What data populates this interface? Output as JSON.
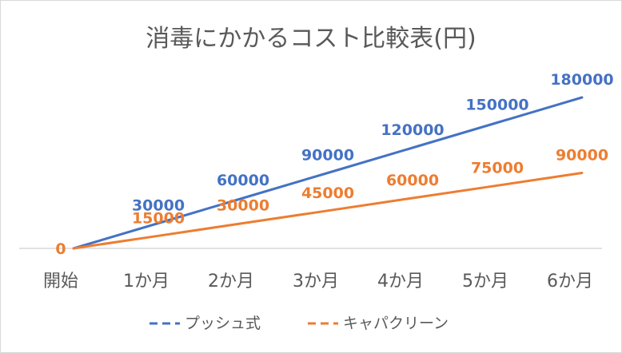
{
  "chart_data": {
    "type": "line",
    "title": "消毒にかかるコスト比較表(円)",
    "categories": [
      "開始",
      "1か月",
      "2か月",
      "3か月",
      "4か月",
      "5か月",
      "6か月"
    ],
    "series": [
      {
        "name": "プッシュ式",
        "values": [
          0,
          30000,
          60000,
          90000,
          120000,
          150000,
          180000
        ],
        "color": "#4472C4"
      },
      {
        "name": "キャパクリーン",
        "values": [
          0,
          15000,
          30000,
          45000,
          60000,
          75000,
          90000
        ],
        "color": "#ED7D31"
      }
    ],
    "ylim": [
      0,
      200000
    ],
    "grid": false,
    "legend_position": "bottom",
    "data_labels": true
  }
}
